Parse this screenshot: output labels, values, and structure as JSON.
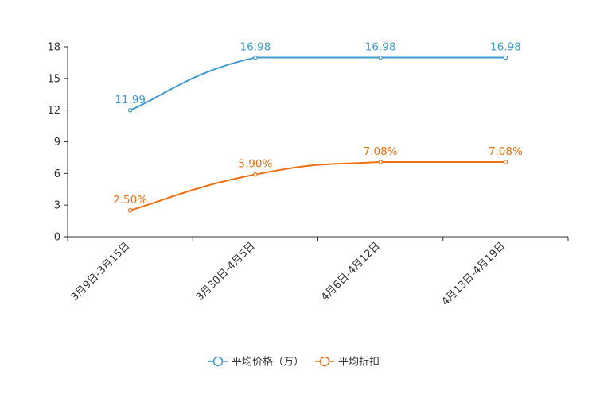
{
  "chart_data": {
    "type": "line",
    "categories": [
      "3月9日-3月15日",
      "3月30日-4月5日",
      "4月6日-4月12日",
      "4月13日-4月19日"
    ],
    "series": [
      {
        "name": "平均价格（万）",
        "values": [
          11.99,
          16.98,
          16.98,
          16.98
        ],
        "labels": [
          "11.99",
          "16.98",
          "16.98",
          "16.98"
        ],
        "color": "#3d9bd1"
      },
      {
        "name": "平均折扣",
        "values": [
          2.5,
          5.9,
          7.08,
          7.08
        ],
        "labels": [
          "2.50%",
          "5.90%",
          "7.08%",
          "7.08%"
        ],
        "color": "#f07010"
      }
    ],
    "yticks": [
      "0",
      "3",
      "6",
      "9",
      "12",
      "15",
      "18"
    ],
    "ylim": [
      0,
      18
    ],
    "smooth": true,
    "grid": false,
    "legend": "bottom-center",
    "title": "",
    "xlabel": "",
    "ylabel": ""
  }
}
